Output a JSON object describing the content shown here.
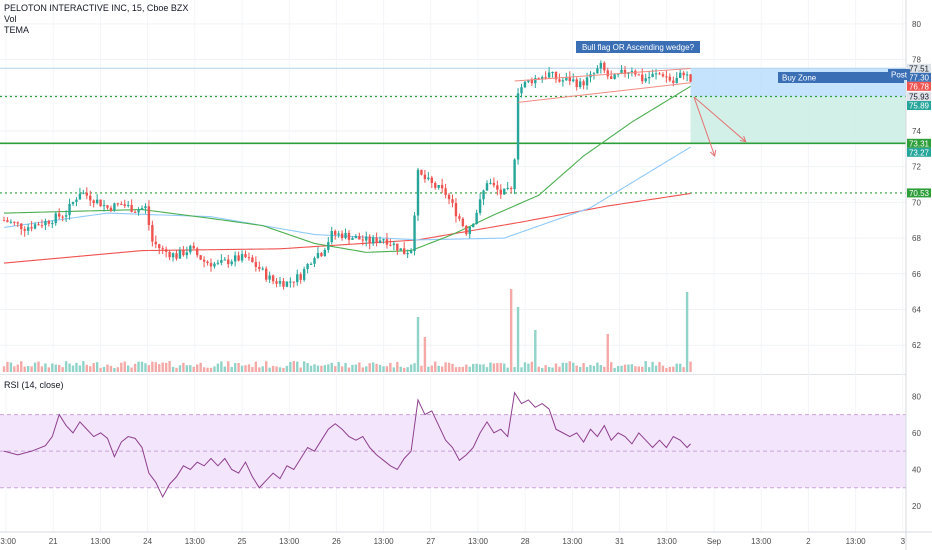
{
  "legend": {
    "title": "PELOTON INTERACTIVE INC, 15, Cboe BZX",
    "vol": "Vol",
    "tema": "TEMA",
    "rsi": "RSI (14, close)"
  },
  "colors": {
    "up": "#26a69a",
    "down": "#ef5350",
    "ma_green": "#4caf50",
    "ma_blue": "#90caf9",
    "ma_red": "#ef5350",
    "rsi_line": "#8e3f8e",
    "rsi_band": "#f3e5fb",
    "level_green": "#2e9e3a",
    "buy_zone": "#bbdefb",
    "target_zone": "#cdeee6",
    "annot_box": "#3a6fb5"
  },
  "annotations": {
    "flag": "Bull flag OR Ascending wedge?",
    "buy_zone": "Buy Zone",
    "post": "Post"
  },
  "chart_data": [
    {
      "type": "candlestick",
      "title": "PELOTON INTERACTIVE INC, 15, Cboe BZX",
      "y_ticks": [
        62,
        64,
        66,
        68,
        70,
        72,
        74,
        76,
        78,
        80
      ],
      "ylim": [
        60.5,
        81
      ],
      "x_tick_labels": [
        "13:00",
        "21",
        "13:00",
        "24",
        "13:00",
        "25",
        "13:00",
        "26",
        "13:00",
        "27",
        "13:00",
        "28",
        "13:00",
        "31",
        "13:00",
        "Sep",
        "13:00",
        "2",
        "13:00",
        "3"
      ],
      "price_tags": [
        {
          "label": "77.51",
          "value": 77.51,
          "color": "#dfe3ea",
          "text_color": "#131722"
        },
        {
          "label": "77.30",
          "value": 77.3,
          "color": "#3a6fb5",
          "text_color": "#ffffff"
        },
        {
          "label": "76.78",
          "value": 76.78,
          "color": "#ef5350",
          "text_color": "#ffffff"
        },
        {
          "label": "75.93",
          "value": 75.93,
          "color": "#dfe3ea",
          "text_color": "#131722"
        },
        {
          "label": "75.89",
          "value": 75.89,
          "color": "#26a69a",
          "text_color": "#ffffff"
        },
        {
          "label": "73.31",
          "value": 73.31,
          "color": "#2e9e3a",
          "text_color": "#ffffff"
        },
        {
          "label": "73.27",
          "value": 73.27,
          "color": "#26a69a",
          "text_color": "#ffffff"
        },
        {
          "label": "70.53",
          "value": 70.53,
          "color": "#2e9e3a",
          "text_color": "#ffffff"
        }
      ],
      "levels": [
        {
          "value": 75.93,
          "style": "dotted",
          "color": "#2e9e3a"
        },
        {
          "value": 73.31,
          "style": "solid",
          "color": "#2e9e3a"
        },
        {
          "value": 70.53,
          "style": "dotted",
          "color": "#2e9e3a"
        },
        {
          "value": 77.51,
          "style": "solid",
          "color": "#b3d4ee"
        }
      ],
      "price_path": [
        [
          0,
          69.0
        ],
        [
          6,
          68.6
        ],
        [
          12,
          68.9
        ],
        [
          18,
          69.4
        ],
        [
          22,
          70.6
        ],
        [
          26,
          70.2
        ],
        [
          30,
          69.7
        ],
        [
          34,
          69.9
        ],
        [
          38,
          69.6
        ],
        [
          41,
          69.7
        ],
        [
          43,
          67.8
        ],
        [
          46,
          67.3
        ],
        [
          50,
          67.0
        ],
        [
          54,
          67.4
        ],
        [
          58,
          66.7
        ],
        [
          62,
          66.5
        ],
        [
          66,
          66.8
        ],
        [
          70,
          66.9
        ],
        [
          74,
          66.3
        ],
        [
          76,
          65.9
        ],
        [
          78,
          65.6
        ],
        [
          82,
          65.5
        ],
        [
          86,
          65.9
        ],
        [
          88,
          66.5
        ],
        [
          90,
          67.1
        ],
        [
          92,
          67.2
        ],
        [
          95,
          68.2
        ],
        [
          98,
          68.2
        ],
        [
          102,
          68.0
        ],
        [
          106,
          67.8
        ],
        [
          110,
          68.0
        ],
        [
          114,
          67.5
        ],
        [
          116,
          67.2
        ],
        [
          118,
          67.4
        ],
        [
          120,
          71.6
        ],
        [
          124,
          71.0
        ],
        [
          128,
          70.5
        ],
        [
          132,
          69.1
        ],
        [
          134,
          68.4
        ],
        [
          136,
          69.0
        ],
        [
          138,
          70.0
        ],
        [
          140,
          71.2
        ],
        [
          144,
          70.5
        ],
        [
          147,
          70.6
        ],
        [
          148,
          72.6
        ],
        [
          149,
          76.3
        ],
        [
          152,
          76.8
        ],
        [
          155,
          77.0
        ],
        [
          158,
          77.2
        ],
        [
          161,
          76.8
        ],
        [
          164,
          76.9
        ],
        [
          167,
          76.6
        ],
        [
          170,
          77.0
        ],
        [
          173,
          77.6
        ],
        [
          176,
          76.8
        ],
        [
          179,
          77.2
        ],
        [
          182,
          77.5
        ],
        [
          185,
          76.9
        ],
        [
          188,
          77.1
        ],
        [
          191,
          77.2
        ],
        [
          194,
          76.7
        ],
        [
          197,
          77.3
        ],
        [
          199,
          76.8
        ]
      ],
      "last_index": 199,
      "projection_index": 260,
      "ma_green": [
        [
          0,
          69.4
        ],
        [
          20,
          69.5
        ],
        [
          40,
          69.6
        ],
        [
          60,
          69.1
        ],
        [
          75,
          68.7
        ],
        [
          90,
          67.7
        ],
        [
          105,
          67.2
        ],
        [
          118,
          67.3
        ],
        [
          130,
          68.2
        ],
        [
          142,
          69.3
        ],
        [
          155,
          70.4
        ],
        [
          168,
          72.6
        ],
        [
          182,
          74.5
        ],
        [
          199,
          76.5
        ]
      ],
      "ma_blue": [
        [
          0,
          68.6
        ],
        [
          30,
          69.4
        ],
        [
          60,
          69.2
        ],
        [
          90,
          68.2
        ],
        [
          120,
          67.9
        ],
        [
          145,
          68.0
        ],
        [
          170,
          69.7
        ],
        [
          199,
          73.1
        ]
      ],
      "ma_red": [
        [
          0,
          66.6
        ],
        [
          40,
          67.3
        ],
        [
          80,
          67.4
        ],
        [
          120,
          67.9
        ],
        [
          150,
          68.9
        ],
        [
          175,
          69.8
        ],
        [
          199,
          70.5
        ]
      ],
      "flag_upper": [
        [
          148,
          76.8
        ],
        [
          199,
          77.5
        ]
      ],
      "flag_lower": [
        [
          149,
          75.6
        ],
        [
          199,
          76.7
        ]
      ],
      "buy_zone": {
        "x_from": 199,
        "x_to": 260,
        "y_from": 75.93,
        "y_to": 77.51
      },
      "target_zone": {
        "x_from": 199,
        "x_to": 260,
        "y_from": 73.31,
        "y_to": 75.93
      },
      "arrows": [
        {
          "from": [
            200,
            75.9
          ],
          "to": [
            206,
            72.6
          ]
        },
        {
          "from": [
            200,
            75.9
          ],
          "to": [
            215,
            73.4
          ]
        }
      ]
    },
    {
      "type": "bar",
      "title": "Vol",
      "note": "volume histogram in price pane",
      "spikes": [
        {
          "index": 120,
          "level": 0.55
        },
        {
          "index": 122,
          "level": 0.35
        },
        {
          "index": 147,
          "level": 0.83
        },
        {
          "index": 149,
          "level": 0.65
        },
        {
          "index": 154,
          "level": 0.42
        },
        {
          "index": 175,
          "level": 0.38
        },
        {
          "index": 198,
          "level": 0.8
        }
      ]
    },
    {
      "type": "line",
      "title": "RSI (14, close)",
      "y_ticks": [
        20,
        40,
        60,
        80
      ],
      "ylim": [
        8,
        90
      ],
      "band": [
        30,
        70
      ],
      "values": [
        [
          0,
          50
        ],
        [
          4,
          48
        ],
        [
          8,
          50
        ],
        [
          12,
          53
        ],
        [
          14,
          58
        ],
        [
          16,
          70
        ],
        [
          18,
          64
        ],
        [
          20,
          60
        ],
        [
          22,
          66
        ],
        [
          24,
          62
        ],
        [
          26,
          58
        ],
        [
          28,
          60
        ],
        [
          30,
          57
        ],
        [
          32,
          47
        ],
        [
          34,
          55
        ],
        [
          36,
          58
        ],
        [
          38,
          57
        ],
        [
          40,
          52
        ],
        [
          42,
          38
        ],
        [
          44,
          33
        ],
        [
          46,
          25
        ],
        [
          48,
          32
        ],
        [
          50,
          36
        ],
        [
          52,
          42
        ],
        [
          54,
          40
        ],
        [
          56,
          44
        ],
        [
          58,
          42
        ],
        [
          60,
          46
        ],
        [
          62,
          42
        ],
        [
          64,
          46
        ],
        [
          66,
          40
        ],
        [
          68,
          38
        ],
        [
          70,
          44
        ],
        [
          72,
          36
        ],
        [
          74,
          30
        ],
        [
          76,
          34
        ],
        [
          78,
          38
        ],
        [
          80,
          35
        ],
        [
          82,
          42
        ],
        [
          84,
          40
        ],
        [
          86,
          46
        ],
        [
          88,
          52
        ],
        [
          90,
          50
        ],
        [
          92,
          56
        ],
        [
          94,
          62
        ],
        [
          96,
          65
        ],
        [
          98,
          62
        ],
        [
          100,
          58
        ],
        [
          102,
          56
        ],
        [
          104,
          58
        ],
        [
          106,
          52
        ],
        [
          108,
          48
        ],
        [
          110,
          45
        ],
        [
          112,
          42
        ],
        [
          114,
          40
        ],
        [
          116,
          46
        ],
        [
          118,
          50
        ],
        [
          120,
          78
        ],
        [
          122,
          70
        ],
        [
          124,
          72
        ],
        [
          126,
          64
        ],
        [
          128,
          56
        ],
        [
          130,
          52
        ],
        [
          132,
          45
        ],
        [
          134,
          48
        ],
        [
          136,
          52
        ],
        [
          138,
          60
        ],
        [
          140,
          66
        ],
        [
          142,
          60
        ],
        [
          144,
          62
        ],
        [
          146,
          58
        ],
        [
          148,
          82
        ],
        [
          150,
          76
        ],
        [
          152,
          78
        ],
        [
          154,
          74
        ],
        [
          156,
          76
        ],
        [
          158,
          73
        ],
        [
          160,
          62
        ],
        [
          162,
          60
        ],
        [
          164,
          58
        ],
        [
          166,
          60
        ],
        [
          168,
          55
        ],
        [
          170,
          62
        ],
        [
          172,
          58
        ],
        [
          174,
          64
        ],
        [
          176,
          56
        ],
        [
          178,
          60
        ],
        [
          180,
          58
        ],
        [
          182,
          54
        ],
        [
          184,
          60
        ],
        [
          186,
          56
        ],
        [
          188,
          52
        ],
        [
          190,
          56
        ],
        [
          192,
          52
        ],
        [
          194,
          58
        ],
        [
          196,
          56
        ],
        [
          198,
          52
        ],
        [
          199,
          54
        ]
      ]
    }
  ]
}
